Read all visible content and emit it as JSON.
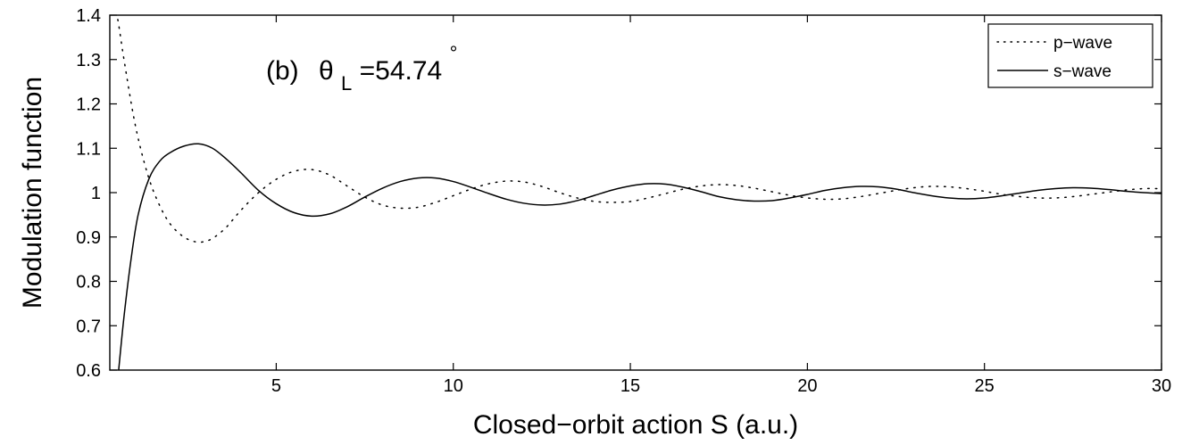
{
  "chart_data": {
    "type": "line",
    "xlabel": "Closed−orbit action S (a.u.)",
    "ylabel": "Modulation function",
    "xlim": [
      0.3,
      30
    ],
    "ylim": [
      0.6,
      1.4
    ],
    "xticks": [
      5,
      10,
      15,
      20,
      25,
      30
    ],
    "yticks": [
      0.6,
      0.7,
      0.8,
      0.9,
      1,
      1.1,
      1.2,
      1.3,
      1.4
    ],
    "grid": false,
    "legend_position": "top-right",
    "annotation": {
      "prefix": "(b)",
      "symbol": "θ",
      "subscript": "L",
      "value": "=54.74",
      "superscript": "°"
    },
    "series": [
      {
        "name": "p−wave",
        "style": "dotted",
        "color": "#000000",
        "x": [
          0.35,
          0.5,
          0.7,
          1.0,
          1.3,
          1.6,
          2.0,
          2.5,
          3.0,
          3.5,
          4.0,
          4.5,
          5.0,
          5.5,
          6.0,
          6.5,
          7.0,
          7.5,
          8.0,
          8.5,
          9.0,
          9.5,
          10.0,
          10.5,
          11.0,
          11.5,
          12.0,
          12.5,
          13.0,
          13.5,
          14.0,
          14.5,
          15.0,
          15.5,
          16.0,
          16.5,
          17.0,
          17.5,
          18.0,
          18.5,
          19.0,
          19.5,
          20.0,
          20.5,
          21.0,
          21.5,
          22.0,
          22.5,
          23.0,
          23.5,
          24.0,
          24.5,
          25.0,
          25.5,
          26.0,
          26.5,
          27.0,
          27.5,
          28.0,
          28.5,
          29.0,
          29.5,
          30.0
        ],
        "y": [
          1.42,
          1.4,
          1.3,
          1.16,
          1.06,
          0.99,
          0.93,
          0.895,
          0.89,
          0.915,
          0.96,
          1.0,
          1.03,
          1.048,
          1.052,
          1.04,
          1.015,
          0.99,
          0.972,
          0.965,
          0.967,
          0.978,
          0.993,
          1.008,
          1.02,
          1.026,
          1.024,
          1.014,
          1.0,
          0.988,
          0.98,
          0.978,
          0.98,
          0.988,
          0.998,
          1.008,
          1.015,
          1.018,
          1.016,
          1.01,
          1.002,
          0.994,
          0.988,
          0.985,
          0.986,
          0.991,
          0.998,
          1.005,
          1.011,
          1.014,
          1.013,
          1.009,
          1.003,
          0.996,
          0.991,
          0.988,
          0.988,
          0.991,
          0.996,
          1.001,
          1.006,
          1.009,
          1.009
        ]
      },
      {
        "name": "s−wave",
        "style": "solid",
        "color": "#000000",
        "x": [
          0.55,
          0.7,
          0.9,
          1.1,
          1.4,
          1.7,
          2.0,
          2.4,
          2.8,
          3.2,
          3.6,
          4.0,
          4.5,
          5.0,
          5.5,
          6.0,
          6.5,
          7.0,
          7.5,
          8.0,
          8.5,
          9.0,
          9.5,
          10.0,
          10.5,
          11.0,
          11.5,
          12.0,
          12.5,
          13.0,
          13.5,
          14.0,
          14.5,
          15.0,
          15.5,
          16.0,
          16.5,
          17.0,
          17.5,
          18.0,
          18.5,
          19.0,
          19.5,
          20.0,
          20.5,
          21.0,
          21.5,
          22.0,
          22.5,
          23.0,
          23.5,
          24.0,
          24.5,
          25.0,
          25.5,
          26.0,
          26.5,
          27.0,
          27.5,
          28.0,
          28.5,
          29.0,
          29.5,
          30.0
        ],
        "y": [
          0.6,
          0.72,
          0.85,
          0.95,
          1.03,
          1.07,
          1.09,
          1.105,
          1.11,
          1.1,
          1.075,
          1.045,
          1.005,
          0.975,
          0.955,
          0.947,
          0.952,
          0.968,
          0.99,
          1.01,
          1.025,
          1.033,
          1.033,
          1.025,
          1.012,
          0.998,
          0.985,
          0.976,
          0.972,
          0.974,
          0.982,
          0.994,
          1.006,
          1.015,
          1.02,
          1.019,
          1.012,
          1.002,
          0.991,
          0.984,
          0.981,
          0.982,
          0.988,
          0.996,
          1.005,
          1.011,
          1.014,
          1.013,
          1.008,
          1.0,
          0.993,
          0.988,
          0.986,
          0.988,
          0.993,
          0.999,
          1.005,
          1.009,
          1.011,
          1.01,
          1.007,
          1.003,
          1.0,
          0.998
        ]
      }
    ]
  }
}
